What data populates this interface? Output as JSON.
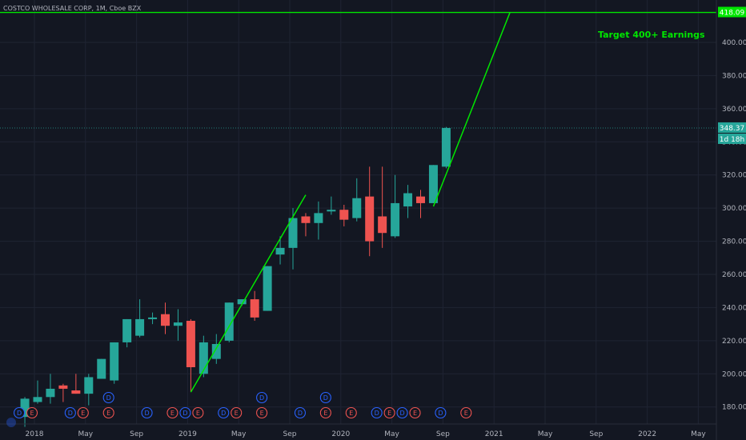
{
  "chart_data": {
    "type": "candlestick",
    "title": "COSTCO WHOLESALE CORP, 1M, Cboe BZX",
    "annotation": "Target 400+ Earnings",
    "colors": {
      "background": "#131722",
      "up": "#26a69a",
      "down": "#ef5350",
      "trend": "#00e600",
      "grid": "#1f2433",
      "axis_text": "#b2b5be",
      "dividend_marker": "#2962ff",
      "earnings_marker": "#ef5350"
    },
    "ylim": [
      165,
      425
    ],
    "y_ticks": [
      180,
      200,
      220,
      240,
      260,
      280,
      300,
      320,
      340,
      360,
      380,
      400
    ],
    "x_tick_labels": [
      "2018",
      "May",
      "Sep",
      "2019",
      "May",
      "Sep",
      "2020",
      "May",
      "Sep",
      "2021",
      "May",
      "Sep",
      "2022",
      "May"
    ],
    "grid": true,
    "candles": [
      {
        "month": "2017-12",
        "open": 174,
        "high": 186,
        "low": 168,
        "close": 185
      },
      {
        "month": "2018-01",
        "open": 183,
        "high": 196,
        "low": 182,
        "close": 186
      },
      {
        "month": "2018-02",
        "open": 186,
        "high": 200,
        "low": 182,
        "close": 191
      },
      {
        "month": "2018-03",
        "open": 193,
        "high": 194,
        "low": 183,
        "close": 191
      },
      {
        "month": "2018-04",
        "open": 190,
        "high": 200,
        "low": 188,
        "close": 188
      },
      {
        "month": "2018-05",
        "open": 188,
        "high": 200,
        "low": 181,
        "close": 198
      },
      {
        "month": "2018-06",
        "open": 197,
        "high": 209,
        "low": 197,
        "close": 209
      },
      {
        "month": "2018-07",
        "open": 196,
        "high": 219,
        "low": 194,
        "close": 219
      },
      {
        "month": "2018-08",
        "open": 219,
        "high": 233,
        "low": 216,
        "close": 233
      },
      {
        "month": "2018-09",
        "open": 223,
        "high": 245,
        "low": 222,
        "close": 233
      },
      {
        "month": "2018-10",
        "open": 233,
        "high": 237,
        "low": 230,
        "close": 234
      },
      {
        "month": "2018-11",
        "open": 236,
        "high": 243,
        "low": 224,
        "close": 229
      },
      {
        "month": "2018-12",
        "open": 229,
        "high": 239,
        "low": 220,
        "close": 231
      },
      {
        "month": "2019-01",
        "open": 232,
        "high": 233,
        "low": 189,
        "close": 204
      },
      {
        "month": "2019-02",
        "open": 200,
        "high": 223,
        "low": 198,
        "close": 219
      },
      {
        "month": "2019-03",
        "open": 209,
        "high": 224,
        "low": 206,
        "close": 218
      },
      {
        "month": "2019-04",
        "open": 220,
        "high": 243,
        "low": 219,
        "close": 243
      },
      {
        "month": "2019-05",
        "open": 242,
        "high": 245,
        "low": 241,
        "close": 245
      },
      {
        "month": "2019-06",
        "open": 245,
        "high": 250,
        "low": 232,
        "close": 234
      },
      {
        "month": "2019-07",
        "open": 238,
        "high": 265,
        "low": 238,
        "close": 265
      },
      {
        "month": "2019-08",
        "open": 272,
        "high": 283,
        "low": 266,
        "close": 276
      },
      {
        "month": "2019-09",
        "open": 276,
        "high": 300,
        "low": 263,
        "close": 294
      },
      {
        "month": "2019-10",
        "open": 295,
        "high": 297,
        "low": 283,
        "close": 291
      },
      {
        "month": "2019-11",
        "open": 291,
        "high": 304,
        "low": 281,
        "close": 297
      },
      {
        "month": "2019-12",
        "open": 298,
        "high": 307,
        "low": 296,
        "close": 299
      },
      {
        "month": "2020-01",
        "open": 299,
        "high": 302,
        "low": 289,
        "close": 293
      },
      {
        "month": "2020-02",
        "open": 294,
        "high": 318,
        "low": 292,
        "close": 306
      },
      {
        "month": "2020-03",
        "open": 307,
        "high": 325,
        "low": 271,
        "close": 280
      },
      {
        "month": "2020-04",
        "open": 295,
        "high": 325,
        "low": 276,
        "close": 285
      },
      {
        "month": "2020-05",
        "open": 283,
        "high": 320,
        "low": 282,
        "close": 303
      },
      {
        "month": "2020-06",
        "open": 301,
        "high": 314,
        "low": 294,
        "close": 309
      },
      {
        "month": "2020-07",
        "open": 307,
        "high": 311,
        "low": 294,
        "close": 303
      },
      {
        "month": "2020-08",
        "open": 303,
        "high": 326,
        "low": 303,
        "close": 326
      },
      {
        "month": "2020-09",
        "open": 325,
        "high": 349,
        "low": 324,
        "close": 348.37
      }
    ],
    "price_tags": [
      {
        "label": "418.09",
        "value": 418.09,
        "color": "#00e600",
        "text_color": "#131722"
      },
      {
        "label": "348.37",
        "value": 348.37,
        "color": "#26a69a",
        "text_color": "#ffffff"
      },
      {
        "label": "1d 18h",
        "value": 348.37,
        "color": "#26a69a",
        "text_color": "#ffffff"
      }
    ],
    "trend_lines": [
      {
        "from": {
          "month": "2019-01",
          "price": 189
        },
        "to": {
          "month": "2019-10",
          "price": 308
        }
      },
      {
        "from": {
          "month": "2020-08",
          "price": 301
        },
        "to": {
          "month": "2021-02",
          "price": 418.09
        }
      }
    ],
    "horizontal_lines": [
      {
        "price": 418.09,
        "color": "#00e600"
      }
    ],
    "events": [
      {
        "month": "2017-12",
        "label": "D",
        "type": "dividend",
        "row": 0
      },
      {
        "month": "2018-01",
        "label": "E",
        "type": "earnings",
        "row": 0
      },
      {
        "month": "2018-04",
        "label": "D",
        "type": "dividend",
        "row": 0
      },
      {
        "month": "2018-05",
        "label": "E",
        "type": "earnings",
        "row": 0
      },
      {
        "month": "2018-07",
        "label": "D",
        "type": "dividend",
        "row": 1
      },
      {
        "month": "2018-07",
        "label": "E",
        "type": "earnings",
        "row": 0
      },
      {
        "month": "2018-10",
        "label": "D",
        "type": "dividend",
        "row": 0
      },
      {
        "month": "2018-12",
        "label": "E",
        "type": "earnings",
        "row": 0
      },
      {
        "month": "2019-01",
        "label": "D",
        "type": "dividend",
        "row": 0
      },
      {
        "month": "2019-02",
        "label": "E",
        "type": "earnings",
        "row": 0
      },
      {
        "month": "2019-04",
        "label": "D",
        "type": "dividend",
        "row": 0
      },
      {
        "month": "2019-05",
        "label": "E",
        "type": "earnings",
        "row": 0
      },
      {
        "month": "2019-07",
        "label": "D",
        "type": "dividend",
        "row": 1
      },
      {
        "month": "2019-07",
        "label": "E",
        "type": "earnings",
        "row": 0
      },
      {
        "month": "2019-10",
        "label": "D",
        "type": "dividend",
        "row": 0
      },
      {
        "month": "2019-12",
        "label": "E",
        "type": "earnings",
        "row": 0
      },
      {
        "month": "2019-12",
        "label": "D",
        "type": "dividend",
        "row": 1
      },
      {
        "month": "2020-02",
        "label": "E",
        "type": "earnings",
        "row": 0
      },
      {
        "month": "2020-04",
        "label": "D",
        "type": "dividend",
        "row": 0
      },
      {
        "month": "2020-05",
        "label": "E",
        "type": "earnings",
        "row": 0
      },
      {
        "month": "2020-06",
        "label": "D",
        "type": "dividend",
        "row": 0
      },
      {
        "month": "2020-07",
        "label": "E",
        "type": "earnings",
        "row": 0
      },
      {
        "month": "2020-09",
        "label": "D",
        "type": "dividend",
        "row": 0
      },
      {
        "month": "2020-11",
        "label": "E",
        "type": "earnings",
        "row": 0
      }
    ]
  }
}
